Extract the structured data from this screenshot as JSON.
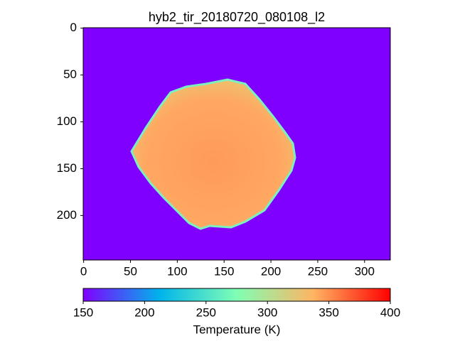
{
  "chart_data": {
    "type": "heatmap",
    "title": "hyb2_tir_20180720_080108_l2",
    "xlim": [
      -0.5,
      327.5
    ],
    "ylim": [
      247.5,
      -0.5
    ],
    "xticks": [
      0,
      50,
      100,
      150,
      200,
      250,
      300
    ],
    "yticks": [
      0,
      50,
      100,
      150,
      200
    ],
    "background_color": "#8000ff",
    "colorbar": {
      "label": "Temperature (K)",
      "lim": [
        150,
        400
      ],
      "ticks": [
        150,
        200,
        250,
        300,
        350,
        400
      ],
      "colors": [
        "#8000ff",
        "#00b4eb",
        "#80ffb4",
        "#ffb462",
        "#ff0000"
      ]
    }
  }
}
